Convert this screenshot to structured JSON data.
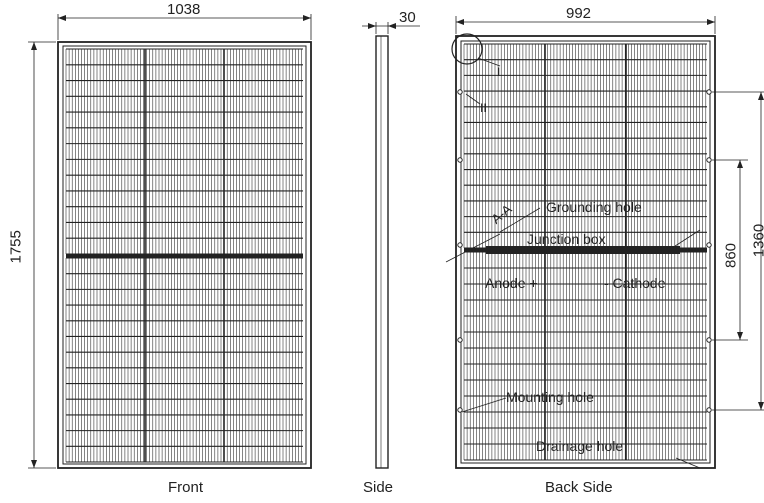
{
  "dimensions": {
    "front_width": "1038",
    "front_height": "1755",
    "side_thickness": "30",
    "back_width": "992",
    "hole_spacing_inner": "860",
    "hole_spacing_outer": "1360"
  },
  "views": {
    "front": "Front",
    "side": "Side",
    "back": "Back Side"
  },
  "callouts": {
    "detail_one": "I",
    "detail_two": "II",
    "section": "A-A",
    "grounding_hole": "Grounding hole",
    "junction_box": "Junction box",
    "anode": "Anode +",
    "cathode": "- Cathode",
    "mounting_hole": "Mounting hole",
    "drainage_hole": "Drainage hole"
  },
  "colors": {
    "line": "#222222",
    "background": "#ffffff"
  }
}
